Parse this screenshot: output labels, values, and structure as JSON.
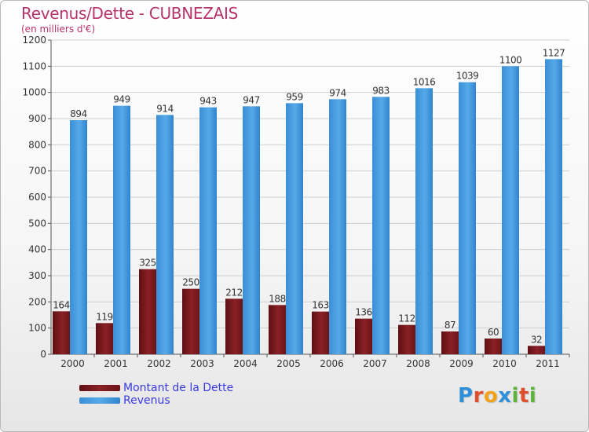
{
  "chart_data": {
    "type": "bar",
    "title": "Revenus/Dette - CUBNEZAIS",
    "subtitle": "(en milliers d'€)",
    "categories": [
      "2000",
      "2001",
      "2002",
      "2003",
      "2004",
      "2005",
      "2006",
      "2007",
      "2008",
      "2009",
      "2010",
      "2011"
    ],
    "series": [
      {
        "name": "Montant de la Dette",
        "color": "#7a1a1e",
        "values": [
          164,
          119,
          325,
          250,
          212,
          188,
          163,
          136,
          112,
          87,
          60,
          32
        ]
      },
      {
        "name": "Revenus",
        "color": "#3f98dc",
        "values": [
          894,
          949,
          914,
          943,
          947,
          959,
          974,
          983,
          1016,
          1039,
          1100,
          1127
        ]
      }
    ],
    "y_ticks": [
      0,
      100,
      200,
      300,
      400,
      500,
      600,
      700,
      800,
      900,
      1000,
      1100,
      1200
    ],
    "ylim": [
      0,
      1200
    ],
    "grid": true,
    "legend_position": "bottom-left"
  },
  "logo": {
    "letters": [
      "P",
      "r",
      "o",
      "x",
      "i",
      "t",
      "i"
    ],
    "colors": [
      "#2f8fd8",
      "#e04e2c",
      "#f2a31b",
      "#2f8fd8",
      "#5cb53a",
      "#e04e2c",
      "#5cb53a"
    ]
  }
}
